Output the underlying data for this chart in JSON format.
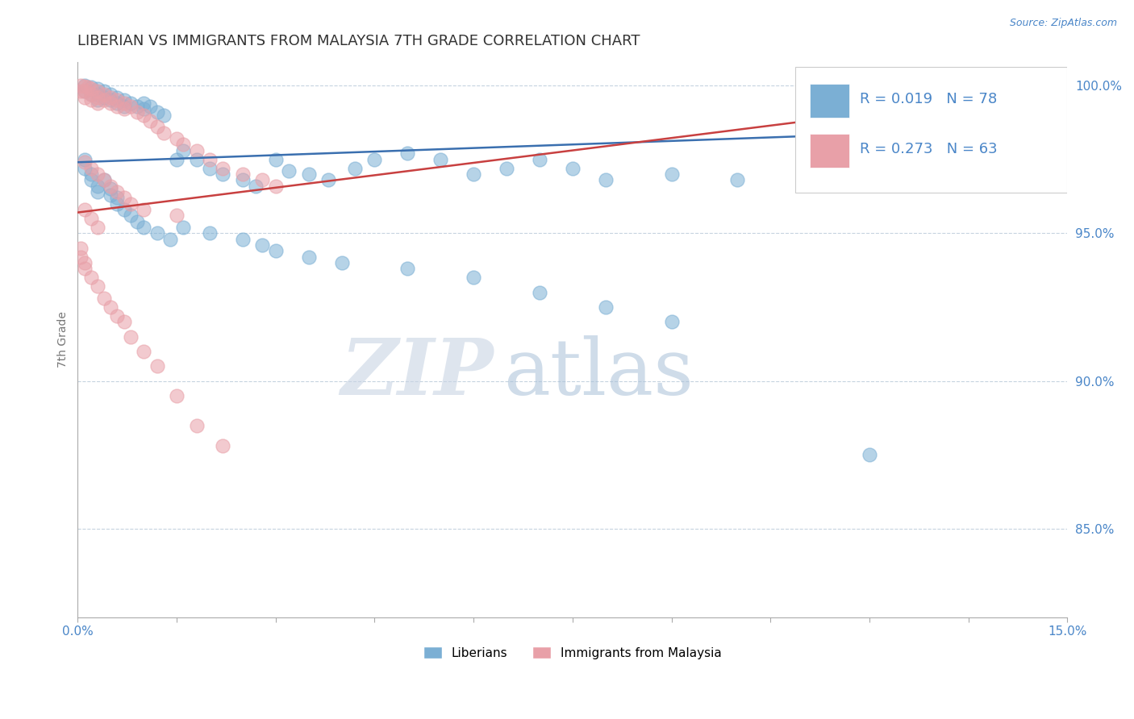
{
  "title": "LIBERIAN VS IMMIGRANTS FROM MALAYSIA 7TH GRADE CORRELATION CHART",
  "source_text": "Source: ZipAtlas.com",
  "ylabel": "7th Grade",
  "xlim": [
    0.0,
    0.15
  ],
  "ylim": [
    0.82,
    1.008
  ],
  "xticks": [
    0.0,
    0.015,
    0.03,
    0.045,
    0.06,
    0.075,
    0.09,
    0.105,
    0.12,
    0.135,
    0.15
  ],
  "ytick_right": [
    0.85,
    0.9,
    0.95,
    1.0
  ],
  "ytick_right_labels": [
    "85.0%",
    "90.0%",
    "95.0%",
    "100.0%"
  ],
  "color_blue": "#7bafd4",
  "color_pink": "#e8a0a8",
  "color_trendline_blue": "#3a6faf",
  "color_trendline_pink": "#c84040",
  "legend_R_blue": "R = 0.019",
  "legend_N_blue": "N = 78",
  "legend_R_pink": "R = 0.273",
  "legend_N_pink": "N = 63",
  "legend_label_blue": "Liberians",
  "legend_label_pink": "Immigrants from Malaysia",
  "watermark_zip": "ZIP",
  "watermark_atlas": "atlas",
  "title_fontsize": 13,
  "axis_label_color": "#4a86c8",
  "grid_color": "#b8c8d8",
  "liberians_x": [
    0.001,
    0.001,
    0.002,
    0.002,
    0.003,
    0.003,
    0.003,
    0.004,
    0.004,
    0.005,
    0.005,
    0.006,
    0.006,
    0.007,
    0.007,
    0.008,
    0.009,
    0.01,
    0.01,
    0.011,
    0.012,
    0.013,
    0.015,
    0.016,
    0.018,
    0.02,
    0.022,
    0.025,
    0.027,
    0.03,
    0.032,
    0.035,
    0.038,
    0.042,
    0.045,
    0.05,
    0.055,
    0.06,
    0.065,
    0.07,
    0.075,
    0.08,
    0.09,
    0.1,
    0.11,
    0.12,
    0.13,
    0.14,
    0.001,
    0.001,
    0.002,
    0.002,
    0.003,
    0.003,
    0.004,
    0.005,
    0.005,
    0.006,
    0.006,
    0.007,
    0.008,
    0.009,
    0.01,
    0.012,
    0.014,
    0.016,
    0.02,
    0.025,
    0.028,
    0.03,
    0.035,
    0.04,
    0.05,
    0.06,
    0.07,
    0.08,
    0.09,
    0.12
  ],
  "liberians_y": [
    0.9999,
    0.998,
    0.9995,
    0.997,
    0.999,
    0.997,
    0.995,
    0.998,
    0.996,
    0.997,
    0.995,
    0.996,
    0.994,
    0.995,
    0.993,
    0.994,
    0.993,
    0.994,
    0.992,
    0.993,
    0.991,
    0.99,
    0.975,
    0.978,
    0.975,
    0.972,
    0.97,
    0.968,
    0.966,
    0.975,
    0.971,
    0.97,
    0.968,
    0.972,
    0.975,
    0.977,
    0.975,
    0.97,
    0.972,
    0.975,
    0.972,
    0.968,
    0.97,
    0.968,
    0.971,
    0.974,
    0.97,
    0.968,
    0.975,
    0.972,
    0.97,
    0.968,
    0.966,
    0.964,
    0.968,
    0.965,
    0.963,
    0.962,
    0.96,
    0.958,
    0.956,
    0.954,
    0.952,
    0.95,
    0.948,
    0.952,
    0.95,
    0.948,
    0.946,
    0.944,
    0.942,
    0.94,
    0.938,
    0.935,
    0.93,
    0.925,
    0.92,
    0.875
  ],
  "malaysia_x": [
    0.0005,
    0.0005,
    0.001,
    0.001,
    0.001,
    0.0015,
    0.002,
    0.002,
    0.002,
    0.003,
    0.003,
    0.003,
    0.004,
    0.004,
    0.005,
    0.005,
    0.006,
    0.006,
    0.007,
    0.007,
    0.008,
    0.009,
    0.01,
    0.011,
    0.012,
    0.013,
    0.015,
    0.016,
    0.018,
    0.02,
    0.022,
    0.025,
    0.028,
    0.03,
    0.001,
    0.002,
    0.003,
    0.004,
    0.005,
    0.006,
    0.007,
    0.008,
    0.01,
    0.015,
    0.001,
    0.002,
    0.003,
    0.0005,
    0.0005,
    0.001,
    0.001,
    0.002,
    0.003,
    0.004,
    0.005,
    0.006,
    0.007,
    0.008,
    0.01,
    0.012,
    0.015,
    0.018,
    0.022
  ],
  "malaysia_y": [
    0.9999,
    0.998,
    0.9998,
    0.998,
    0.996,
    0.9995,
    0.999,
    0.997,
    0.995,
    0.998,
    0.996,
    0.994,
    0.997,
    0.995,
    0.996,
    0.994,
    0.995,
    0.993,
    0.994,
    0.992,
    0.993,
    0.991,
    0.99,
    0.988,
    0.986,
    0.984,
    0.982,
    0.98,
    0.978,
    0.975,
    0.972,
    0.97,
    0.968,
    0.966,
    0.974,
    0.972,
    0.97,
    0.968,
    0.966,
    0.964,
    0.962,
    0.96,
    0.958,
    0.956,
    0.958,
    0.955,
    0.952,
    0.945,
    0.942,
    0.94,
    0.938,
    0.935,
    0.932,
    0.928,
    0.925,
    0.922,
    0.92,
    0.915,
    0.91,
    0.905,
    0.895,
    0.885,
    0.878
  ]
}
